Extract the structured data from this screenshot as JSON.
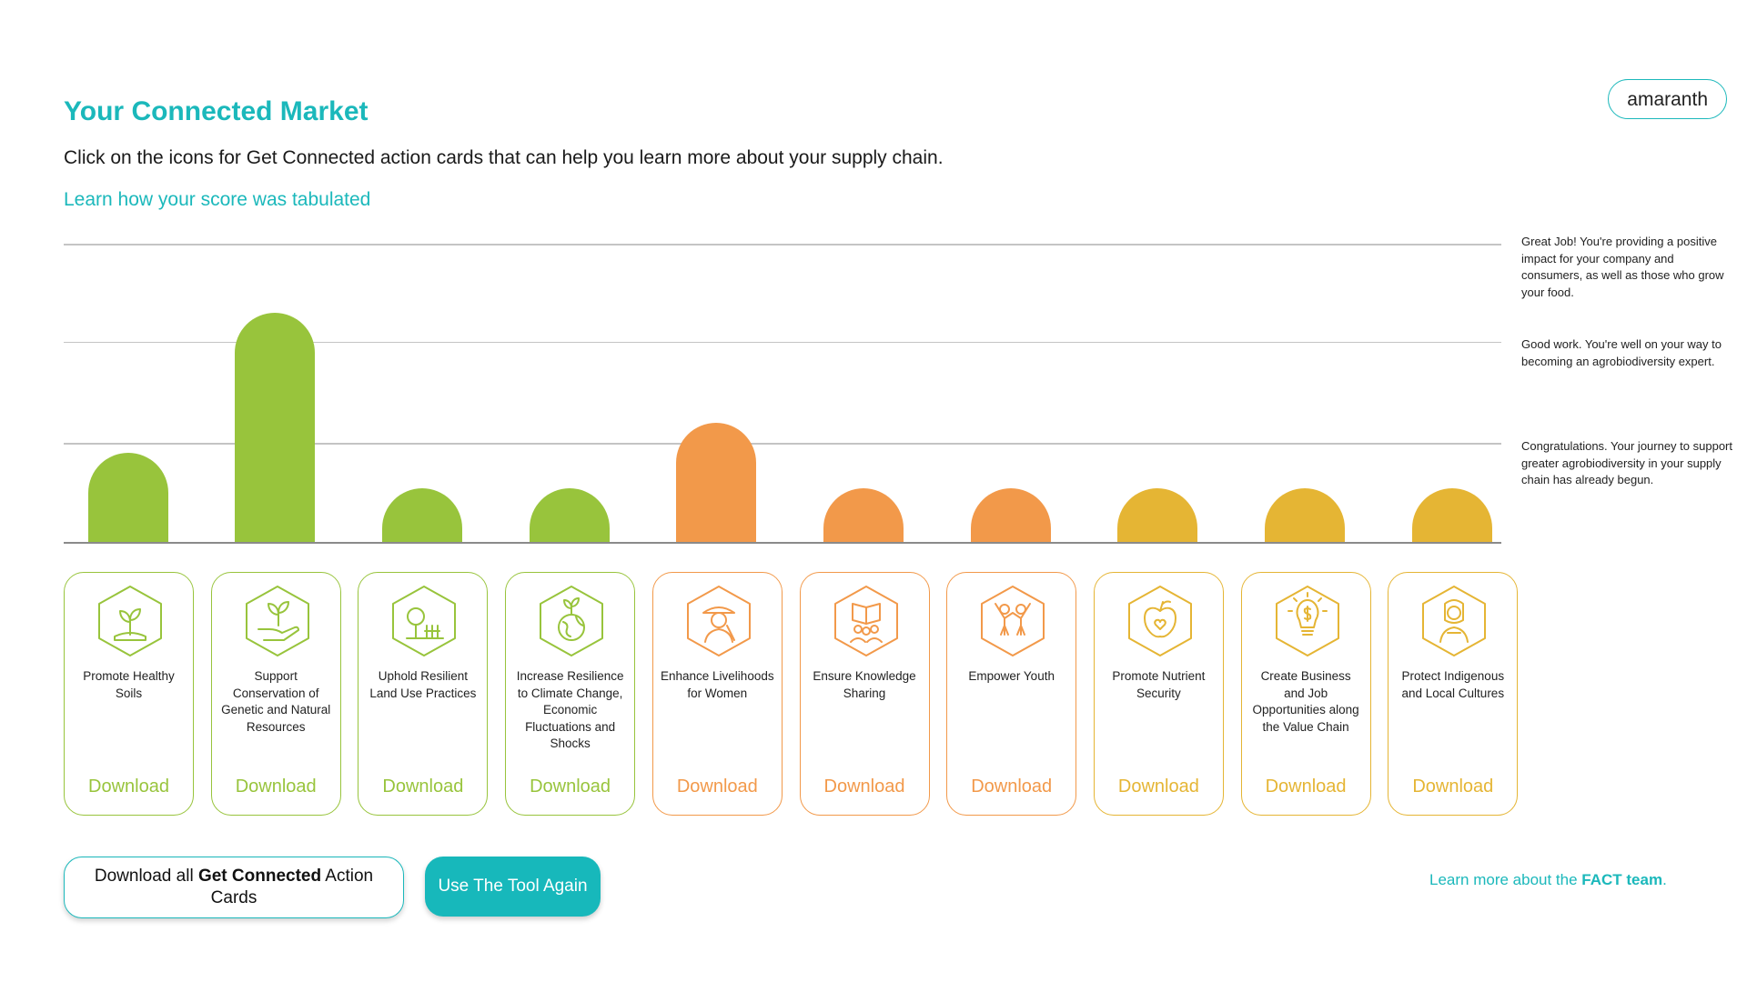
{
  "header": {
    "title": "Your Connected Market",
    "subtitle": "Click on the icons for Get Connected action cards that can help you learn more about your supply chain.",
    "score_link": "Learn how your score was tabulated",
    "crop": "amaranth"
  },
  "levels": [
    "Great Job! You're providing a positive impact for your company and consumers, as well as those who grow your food.",
    "Good work. You're well on your way to becoming an agrobiodiversity expert.",
    "Congratulations. Your journey to support greater agrobiodiversity in your supply chain has already begun."
  ],
  "colors": {
    "accent": "#1bb8bb",
    "green": "#98c43c",
    "orange": "#f2994a",
    "yellow": "#e5b534"
  },
  "chart_data": {
    "type": "bar",
    "categories": [
      "Promote Healthy Soils",
      "Support Conservation of Genetic and Natural Resources",
      "Uphold Resilient Land Use Practices",
      "Increase Resilience to Climate Change, Economic Fluctuations and Shocks",
      "Enhance Livelihoods for Women",
      "Ensure Knowledge Sharing",
      "Empower Youth",
      "Promote Nutrient Security",
      "Create Business and Job Opportunities along the Value Chain",
      "Protect Indigenous and Local Cultures"
    ],
    "values": [
      0.3,
      0.77,
      0.18,
      0.18,
      0.4,
      0.18,
      0.18,
      0.18,
      0.18,
      0.18
    ],
    "ylim": [
      0,
      1
    ],
    "grid_levels": [
      0.33,
      0.67,
      1.0
    ],
    "colors": [
      "#98c43c",
      "#98c43c",
      "#98c43c",
      "#98c43c",
      "#f2994a",
      "#f2994a",
      "#f2994a",
      "#e5b534",
      "#e5b534",
      "#e5b534"
    ]
  },
  "cards": [
    {
      "label": "Promote Healthy Soils",
      "download": "Download",
      "color": "#98c43c",
      "icon": "sprout-soil-icon"
    },
    {
      "label": "Support Conservation of Genetic and Natural Resources",
      "download": "Download",
      "color": "#98c43c",
      "icon": "hand-plant-icon"
    },
    {
      "label": "Uphold Resilient Land Use Practices",
      "download": "Download",
      "color": "#98c43c",
      "icon": "tree-fence-icon"
    },
    {
      "label": "Increase Resilience to Climate Change, Economic Fluctuations and Shocks",
      "download": "Download",
      "color": "#98c43c",
      "icon": "globe-sprout-icon"
    },
    {
      "label": "Enhance Livelihoods for Women",
      "download": "Download",
      "color": "#f2994a",
      "icon": "woman-farmer-icon"
    },
    {
      "label": "Ensure Knowledge Sharing",
      "download": "Download",
      "color": "#f2994a",
      "icon": "book-people-icon"
    },
    {
      "label": "Empower Youth",
      "download": "Download",
      "color": "#f2994a",
      "icon": "youth-icon"
    },
    {
      "label": "Promote Nutrient Security",
      "download": "Download",
      "color": "#e5b534",
      "icon": "apple-heart-icon"
    },
    {
      "label": "Create Business and Job Opportunities along the Value Chain",
      "download": "Download",
      "color": "#e5b534",
      "icon": "lightbulb-dollar-icon"
    },
    {
      "label": "Protect Indigenous and Local Cultures",
      "download": "Download",
      "color": "#e5b534",
      "icon": "indigenous-woman-icon"
    }
  ],
  "actions": {
    "download_all_pre": "Download all ",
    "download_all_bold": "Get Connected",
    "download_all_post": " Action Cards",
    "use_again": "Use The Tool Again"
  },
  "footer": {
    "fact_pre": "Learn more about the ",
    "fact_bold": "FACT team",
    "fact_post": "."
  }
}
